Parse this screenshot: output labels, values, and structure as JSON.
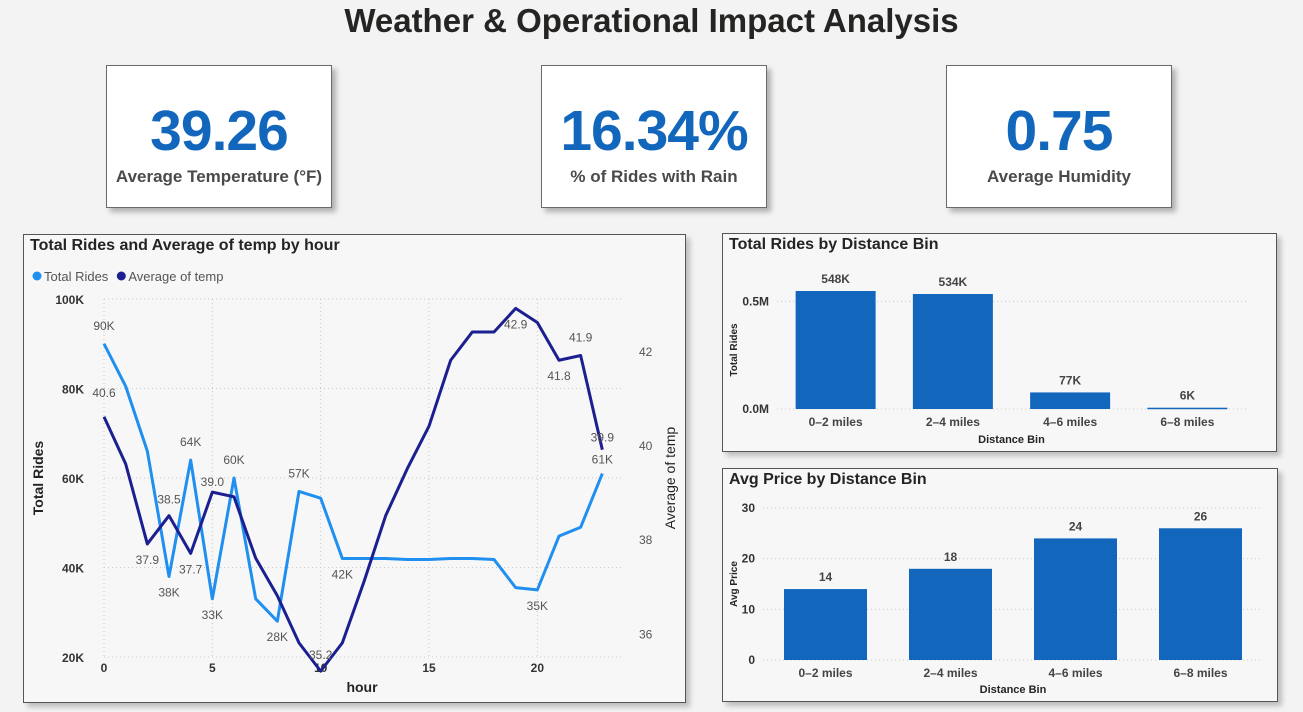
{
  "page": {
    "title": "Weather & Operational Impact Analysis"
  },
  "kpis": [
    {
      "value": "39.26",
      "label": "Average Temperature (°F)"
    },
    {
      "value": "16.34%",
      "label": "% of Rides with Rain"
    },
    {
      "value": "0.75",
      "label": "Average Humidity"
    }
  ],
  "colors": {
    "accent": "#1267bd",
    "rides": "#1f8ff0",
    "temp": "#1b1f8f"
  },
  "chart_data": [
    {
      "type": "line",
      "title": "Total Rides and Average of temp by hour",
      "xlabel": "hour",
      "ylabel": "Total Rides",
      "y2label": "Average of temp",
      "legend": {
        "placement": "top-left",
        "entries": [
          "Total Rides",
          "Average of temp"
        ]
      },
      "x": [
        0,
        1,
        2,
        3,
        4,
        5,
        6,
        7,
        8,
        9,
        10,
        11,
        12,
        13,
        14,
        15,
        16,
        17,
        18,
        19,
        20,
        21,
        22,
        23
      ],
      "xticks": [
        "0",
        "5",
        "10",
        "15",
        "20"
      ],
      "ylim": [
        20000,
        100000
      ],
      "yticks": [
        "20K",
        "40K",
        "60K",
        "80K",
        "100K"
      ],
      "y2lim": [
        35.5,
        43.1
      ],
      "y2ticks": [
        "36",
        "38",
        "40",
        "42"
      ],
      "series": [
        {
          "name": "Total Rides",
          "axis": "left",
          "values": [
            90000,
            80500,
            66000,
            38000,
            64000,
            33000,
            60000,
            33000,
            28000,
            57000,
            55500,
            42000,
            42000,
            42000,
            41800,
            41800,
            42000,
            42000,
            41800,
            35500,
            35000,
            47000,
            49000,
            61000
          ],
          "labels": {
            "0": "90K",
            "3": "38K",
            "4": "64K",
            "5": "33K",
            "6": "60K",
            "8": "28K",
            "9": "57K",
            "11": "42K",
            "20": "35K",
            "23": "61K"
          }
        },
        {
          "name": "Average of temp",
          "axis": "right",
          "values": [
            40.6,
            39.6,
            37.9,
            38.5,
            37.7,
            39.0,
            38.9,
            37.6,
            36.8,
            35.8,
            35.2,
            35.8,
            37.1,
            38.5,
            39.5,
            40.4,
            41.8,
            42.4,
            42.4,
            42.9,
            42.6,
            41.8,
            41.9,
            39.9
          ],
          "labels": {
            "0": "40.6",
            "2": "37.9",
            "3": "38.5",
            "4": "37.7",
            "5": "39.0",
            "10": "35.2",
            "19": "42.9",
            "21": "41.8",
            "22": "41.9",
            "23": "39.9"
          }
        }
      ]
    },
    {
      "type": "bar",
      "title": "Total Rides by Distance Bin",
      "xlabel": "Distance Bin",
      "ylabel": "Total Rides",
      "categories": [
        "0–2 miles",
        "2–4 miles",
        "4–6 miles",
        "6–8 miles"
      ],
      "values": [
        548000,
        534000,
        77000,
        6000
      ],
      "data_labels": [
        "548K",
        "534K",
        "77K",
        "6K"
      ],
      "ylim": [
        0,
        548000
      ],
      "ytick_values": [
        0,
        500000
      ],
      "yticks": [
        "0.0M",
        "0.5M"
      ]
    },
    {
      "type": "bar",
      "title": "Avg Price by Distance Bin",
      "xlabel": "Distance Bin",
      "ylabel": "Avg Price",
      "categories": [
        "0–2 miles",
        "2–4 miles",
        "4–6 miles",
        "6–8 miles"
      ],
      "values": [
        14,
        18,
        24,
        26
      ],
      "data_labels": [
        "14",
        "18",
        "24",
        "26"
      ],
      "ylim": [
        0,
        30
      ],
      "ytick_values": [
        0,
        10,
        20,
        30
      ],
      "yticks": [
        "0",
        "10",
        "20",
        "30"
      ]
    }
  ]
}
